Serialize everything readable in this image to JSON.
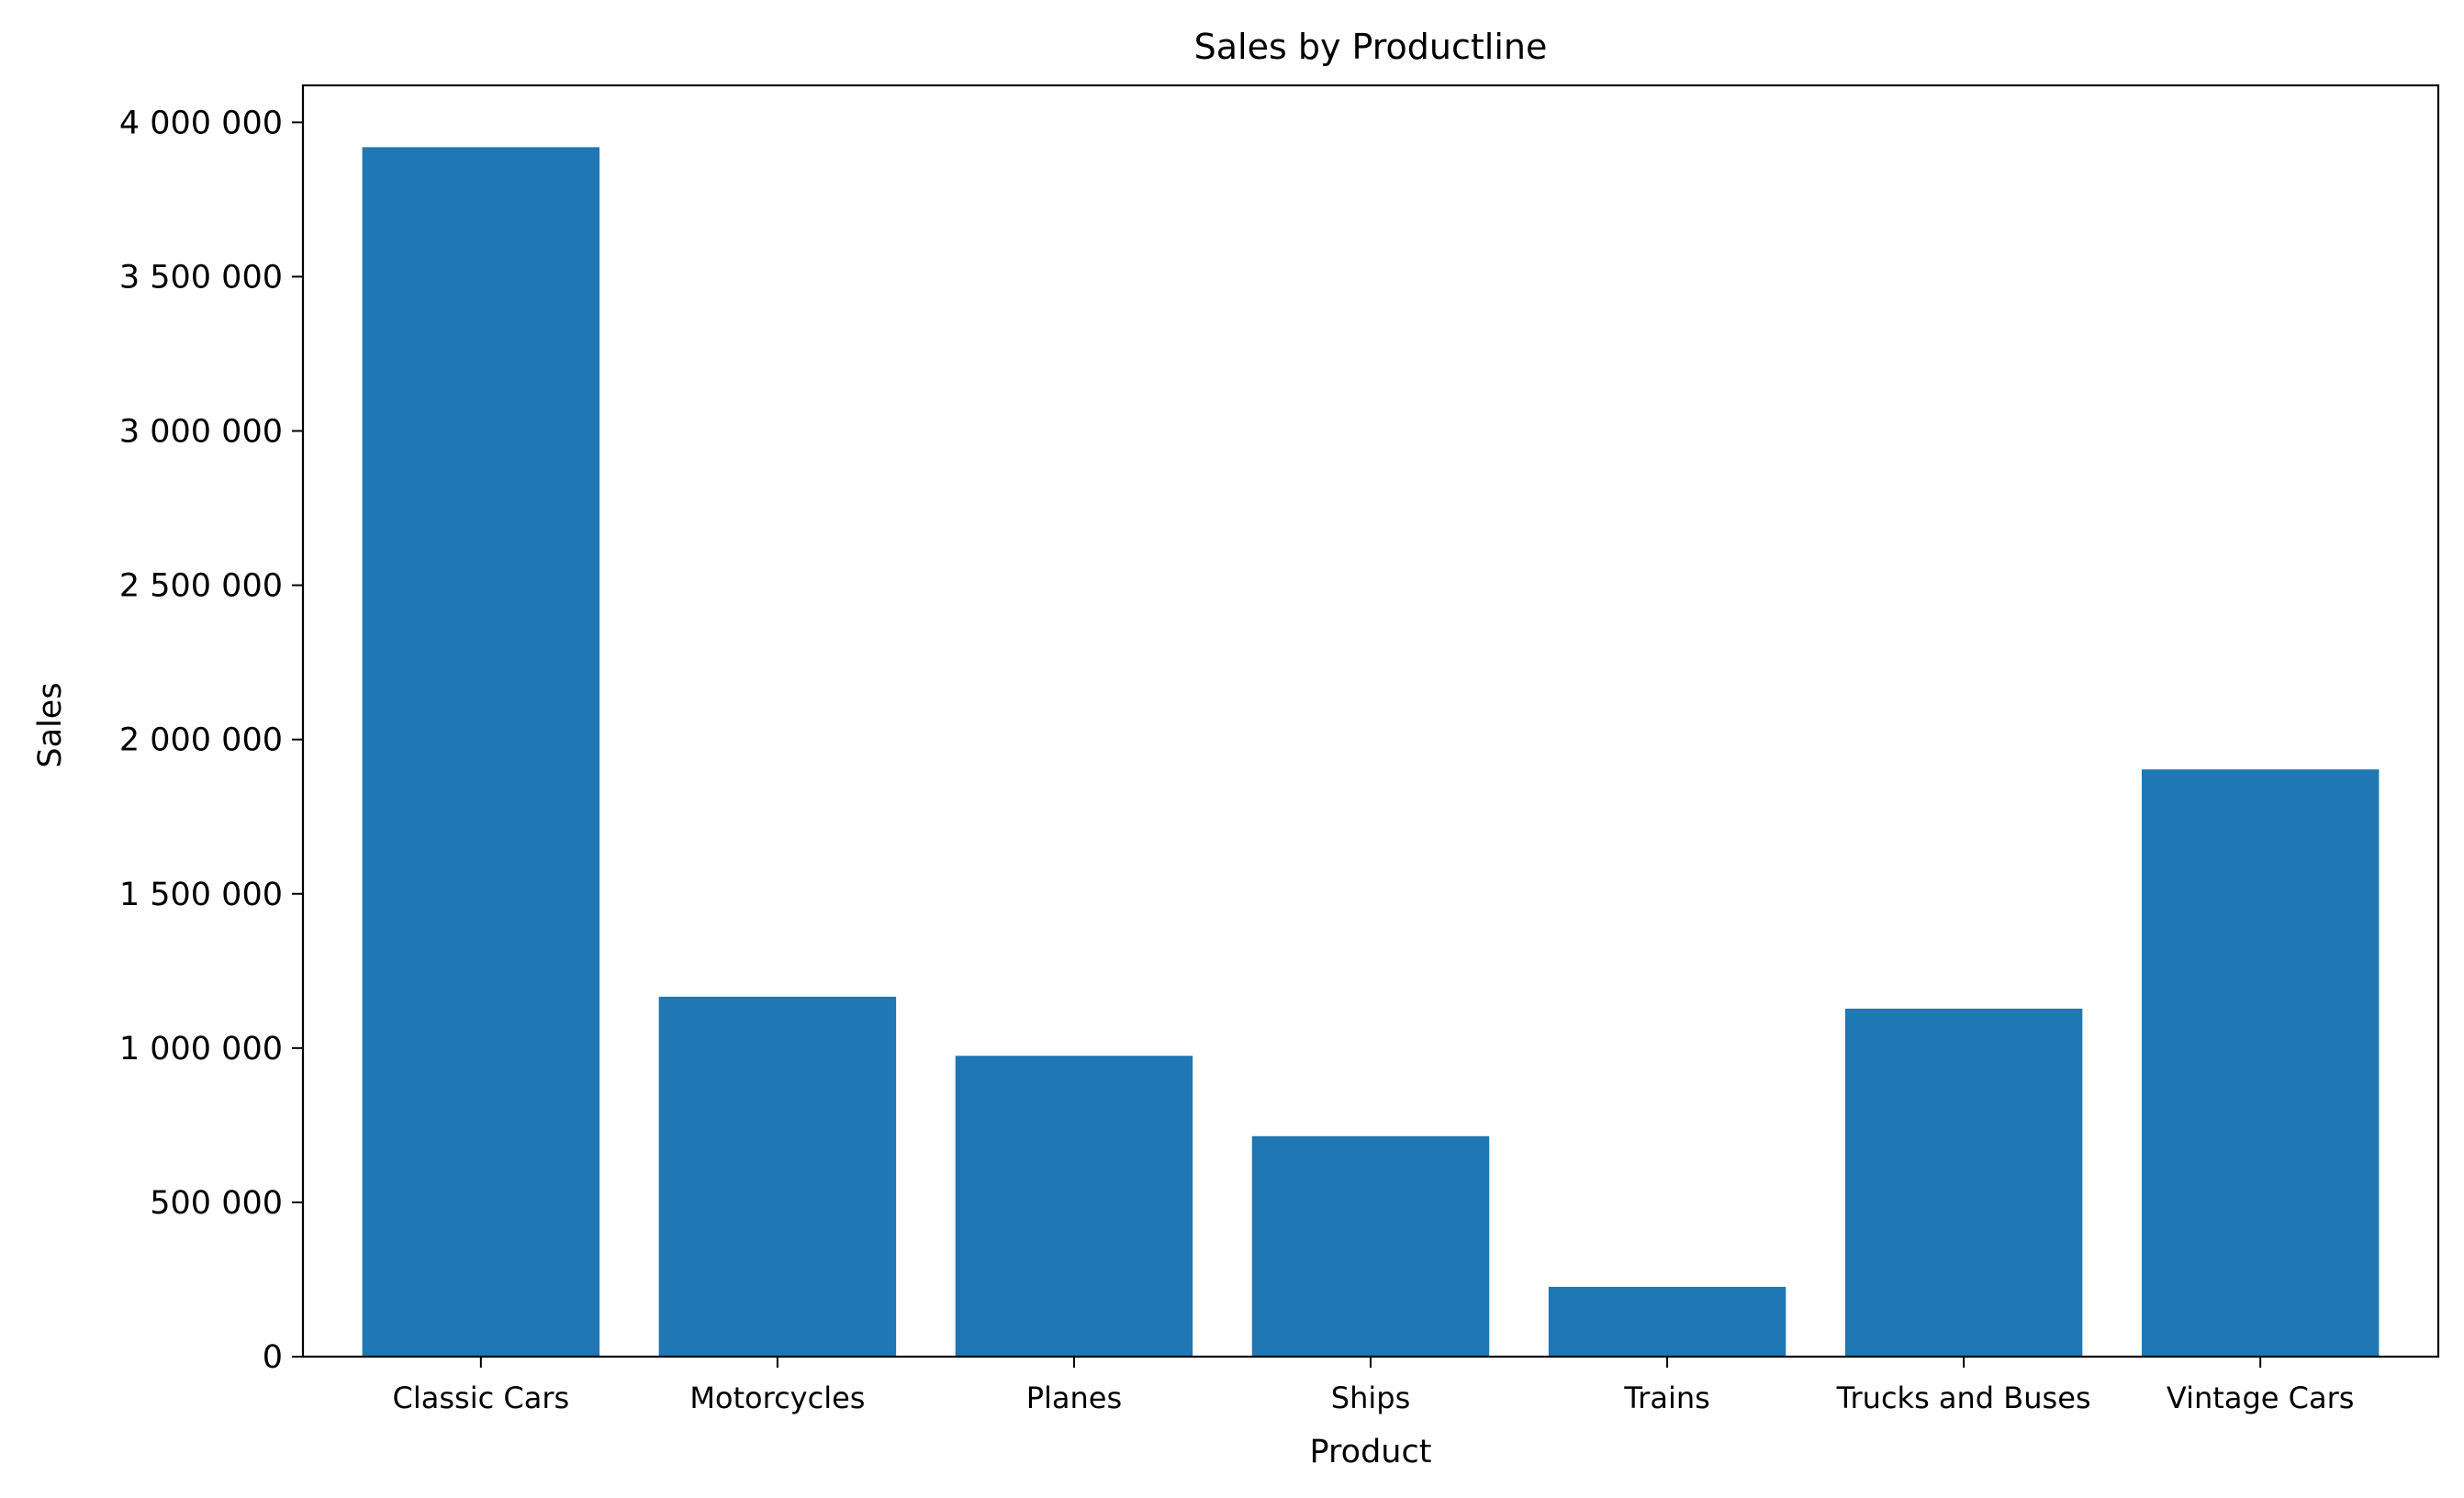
{
  "chart_data": {
    "type": "bar",
    "title": "Sales by Productline",
    "xlabel": "Product",
    "ylabel": "Sales",
    "categories": [
      "Classic Cars",
      "Motorcycles",
      "Planes",
      "Ships",
      "Trains",
      "Trucks and Buses",
      "Vintage Cars"
    ],
    "values": [
      3919616,
      1166388,
      975004,
      714437,
      226243,
      1127790,
      1903151
    ],
    "ylim": [
      0,
      4120000
    ],
    "yticks": [
      0,
      500000,
      1000000,
      1500000,
      2000000,
      2500000,
      3000000,
      3500000,
      4000000
    ],
    "ytick_labels": [
      "0",
      "500 000",
      "1 000 000",
      "1 500 000",
      "2 000 000",
      "2 500 000",
      "3 000 000",
      "3 500 000",
      "4 000 000"
    ],
    "bar_color": "#1f77b4",
    "grid": false,
    "legend": "none"
  }
}
